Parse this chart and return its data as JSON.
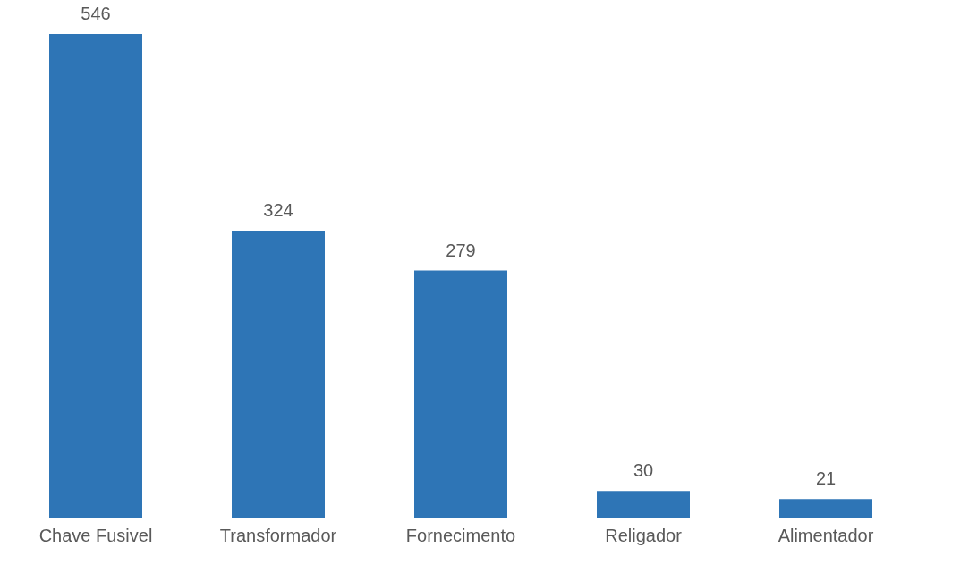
{
  "chart_data": {
    "type": "bar",
    "categories": [
      "Chave Fusivel",
      "Transformador",
      "Fornecimento",
      "Religador",
      "Alimentador"
    ],
    "values": [
      546,
      324,
      279,
      30,
      21
    ],
    "color": "#2e75b6",
    "data_labels": true,
    "grid": false
  }
}
